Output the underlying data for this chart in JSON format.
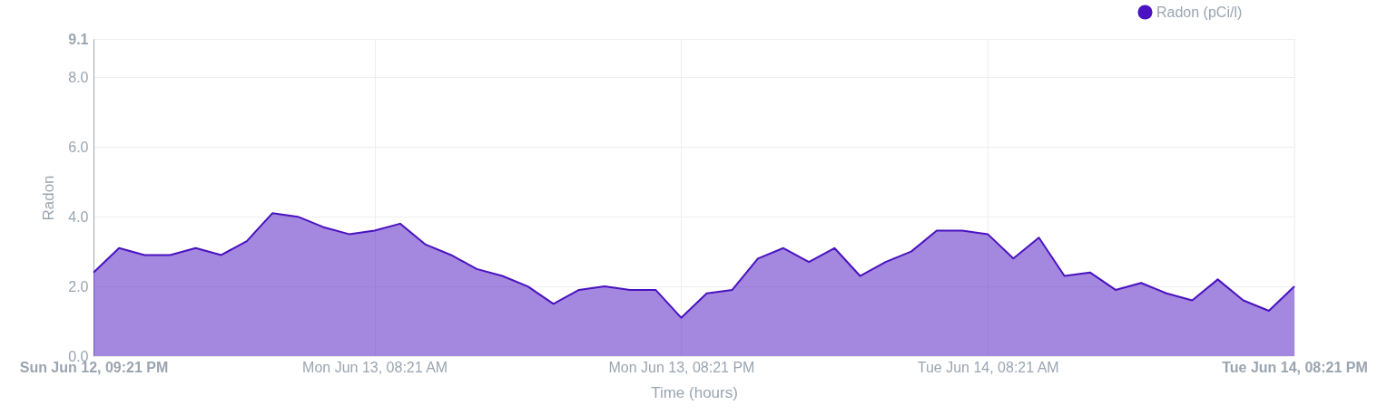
{
  "chart_data": {
    "type": "area",
    "xlabel": "Time (hours)",
    "ylabel": "Radon",
    "x": [
      "--06-12T21:21",
      "--06-12T22:21",
      "--06-12T23:21",
      "--06-13T00:21",
      "--06-13T01:21",
      "--06-13T02:21",
      "--06-13T03:21",
      "--06-13T04:21",
      "--06-13T05:21",
      "--06-13T06:21",
      "--06-13T07:21",
      "--06-13T08:21",
      "--06-13T09:21",
      "--06-13T10:21",
      "--06-13T11:21",
      "--06-13T12:21",
      "--06-13T13:21",
      "--06-13T14:21",
      "--06-13T15:21",
      "--06-13T16:21",
      "--06-13T17:21",
      "--06-13T18:21",
      "--06-13T19:21",
      "--06-13T20:21",
      "--06-13T21:21",
      "--06-13T22:21",
      "--06-13T23:21",
      "--06-14T00:21",
      "--06-14T01:21",
      "--06-14T02:21",
      "--06-14T03:21",
      "--06-14T04:21",
      "--06-14T05:21",
      "--06-14T06:21",
      "--06-14T07:21",
      "--06-14T08:21",
      "--06-14T09:21",
      "--06-14T10:21",
      "--06-14T11:21",
      "--06-14T12:21",
      "--06-14T13:21",
      "--06-14T14:21",
      "--06-14T15:21",
      "--06-14T16:21",
      "--06-14T17:21",
      "--06-14T18:21",
      "--06-14T19:21",
      "--06-14T20:21"
    ],
    "series": [
      {
        "name": "Radon (pCi/l)",
        "color": "#4a12c0",
        "values": [
          2.4,
          3.1,
          2.9,
          2.9,
          3.1,
          2.9,
          3.3,
          4.1,
          4.0,
          3.7,
          3.5,
          3.6,
          3.8,
          3.2,
          2.9,
          2.5,
          2.3,
          2.0,
          1.5,
          1.9,
          2.0,
          1.9,
          1.9,
          1.1,
          1.8,
          1.9,
          2.8,
          3.1,
          2.7,
          3.1,
          2.3,
          2.7,
          3.0,
          3.6,
          3.6,
          3.5,
          2.8,
          3.4,
          2.3,
          2.4,
          1.9,
          2.1,
          1.8,
          1.6,
          2.2,
          1.6,
          1.3,
          2.0
        ]
      }
    ],
    "xlim": [
      "--06-12T21:21",
      "--06-14T20:21"
    ],
    "xticks": [
      {
        "value": "--06-12T21:21",
        "label": "Sun Jun 12, 09:21 PM"
      },
      {
        "value": "--06-13T08:21",
        "label": "Mon Jun 13, 08:21 AM"
      },
      {
        "value": "--06-13T20:21",
        "label": "Mon Jun 13, 08:21 PM"
      },
      {
        "value": "--06-14T08:21",
        "label": "Tue Jun 14, 08:21 AM"
      },
      {
        "value": "--06-14T20:21",
        "label": "Tue Jun 14, 08:21 PM"
      }
    ],
    "ylim": [
      0,
      9.1
    ],
    "yticks": [
      {
        "value": 0,
        "label": "0.0"
      },
      {
        "value": 2,
        "label": "2.0"
      },
      {
        "value": 4,
        "label": "4.0"
      },
      {
        "value": 6,
        "label": "6.0"
      },
      {
        "value": 8,
        "label": "8.0"
      },
      {
        "value": 9.1,
        "label": "9.1"
      }
    ],
    "grid": true,
    "legend": "top right"
  }
}
